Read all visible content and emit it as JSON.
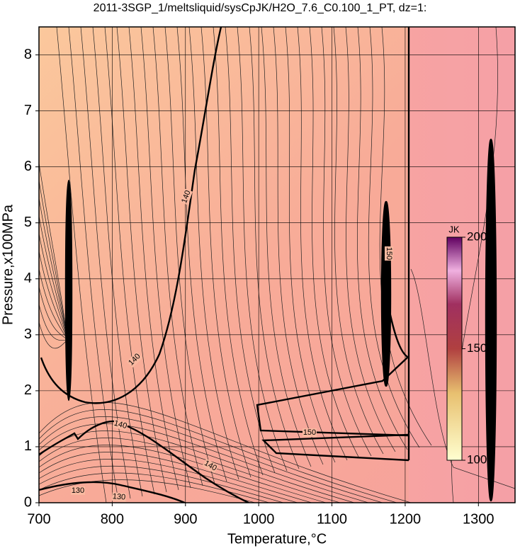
{
  "chart_data": {
    "type": "contour",
    "title": "2011-3SGP_1/meltsliquid/sysCpJK/H2O_7.6_C0.100_1_PT, dz=1:",
    "x_label": "Temperature,°C",
    "y_label": "Pressure,x100MPa",
    "xlim": [
      700,
      1350
    ],
    "ylim": [
      0,
      8.5
    ],
    "xticks": [
      700,
      800,
      900,
      1000,
      1100,
      1200,
      1300
    ],
    "yticks": [
      0,
      1,
      2,
      3,
      4,
      5,
      6,
      7,
      8
    ],
    "grid": true,
    "contour_labels": [
      140,
      140,
      140,
      140,
      130,
      130,
      150,
      150
    ],
    "colorbar": {
      "label": "JK",
      "lim": [
        100,
        200
      ],
      "ticks": [
        100,
        150,
        200
      ]
    }
  }
}
